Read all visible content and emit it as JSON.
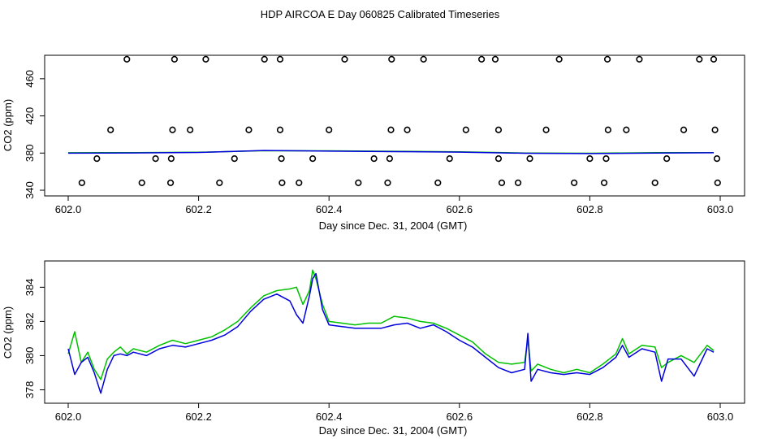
{
  "title": "HDP AIRCOA E  Day 060825  Calibrated Timeseries",
  "colors": {
    "series_green": "#00c000",
    "series_blue": "#0000dd",
    "frame": "#000000",
    "points": "#000000"
  },
  "chart_data": [
    {
      "type": "scatter",
      "xlabel": "Day since Dec. 31, 2004 (GMT)",
      "ylabel": "CO2 (ppm)",
      "xlim": [
        602.0,
        603.0
      ],
      "ylim": [
        340,
        480
      ],
      "x_ticks": [
        "602.0",
        "602.2",
        "602.4",
        "602.6",
        "602.8",
        "603.0"
      ],
      "y_ticks": [
        "340",
        "380",
        "420",
        "460"
      ],
      "grid": false,
      "series": [
        {
          "marker": "open-circle",
          "points": [
            [
              602.09,
              481
            ],
            [
              602.163,
              481
            ],
            [
              602.211,
              481
            ],
            [
              602.301,
              481
            ],
            [
              602.325,
              481
            ],
            [
              602.424,
              481
            ],
            [
              602.496,
              481
            ],
            [
              602.545,
              481
            ],
            [
              602.634,
              481
            ],
            [
              602.655,
              481
            ],
            [
              602.753,
              481
            ],
            [
              602.827,
              481
            ],
            [
              602.876,
              481
            ],
            [
              602.968,
              481
            ],
            [
              602.99,
              481
            ],
            [
              602.065,
              405
            ],
            [
              602.16,
              405
            ],
            [
              602.187,
              405
            ],
            [
              602.277,
              405
            ],
            [
              602.325,
              405
            ],
            [
              602.4,
              405
            ],
            [
              602.495,
              405
            ],
            [
              602.52,
              405
            ],
            [
              602.61,
              405
            ],
            [
              602.66,
              405
            ],
            [
              602.733,
              405
            ],
            [
              602.828,
              405
            ],
            [
              602.856,
              405
            ],
            [
              602.944,
              405
            ],
            [
              602.992,
              405
            ],
            [
              602.044,
              374
            ],
            [
              602.134,
              374
            ],
            [
              602.158,
              374
            ],
            [
              602.255,
              374
            ],
            [
              602.327,
              374
            ],
            [
              602.375,
              374
            ],
            [
              602.469,
              374
            ],
            [
              602.493,
              374
            ],
            [
              602.585,
              374
            ],
            [
              602.66,
              374
            ],
            [
              602.708,
              374
            ],
            [
              602.8,
              374
            ],
            [
              602.825,
              374
            ],
            [
              602.918,
              374
            ],
            [
              602.995,
              374
            ],
            [
              602.021,
              348
            ],
            [
              602.113,
              348
            ],
            [
              602.157,
              348
            ],
            [
              602.232,
              348
            ],
            [
              602.328,
              348
            ],
            [
              602.354,
              348
            ],
            [
              602.445,
              348
            ],
            [
              602.49,
              348
            ],
            [
              602.567,
              348
            ],
            [
              602.665,
              348
            ],
            [
              602.69,
              348
            ],
            [
              602.776,
              348
            ],
            [
              602.822,
              348
            ],
            [
              602.9,
              348
            ],
            [
              602.996,
              348
            ]
          ]
        },
        {
          "line": "green",
          "points": [
            [
              602.0,
              380.3
            ],
            [
              602.1,
              380.5
            ],
            [
              602.2,
              380.9
            ],
            [
              602.3,
              382.5
            ],
            [
              602.4,
              382.4
            ],
            [
              602.5,
              381.9
            ],
            [
              602.6,
              381.3
            ],
            [
              602.7,
              380.1
            ],
            [
              602.8,
              379.8
            ],
            [
              602.9,
              380.4
            ],
            [
              602.99,
              380.4
            ]
          ]
        },
        {
          "line": "blue",
          "points": [
            [
              602.0,
              379.9
            ],
            [
              602.1,
              380.2
            ],
            [
              602.2,
              380.7
            ],
            [
              602.3,
              382.8
            ],
            [
              602.4,
              382.1
            ],
            [
              602.5,
              381.6
            ],
            [
              602.6,
              381.0
            ],
            [
              602.7,
              379.8
            ],
            [
              602.8,
              379.5
            ],
            [
              602.9,
              380.0
            ],
            [
              602.99,
              380.3
            ]
          ]
        }
      ]
    },
    {
      "type": "line",
      "xlabel": "Day since Dec. 31, 2004 (GMT)",
      "ylabel": "CO2 (ppm)",
      "xlim": [
        602.0,
        603.0
      ],
      "ylim": [
        377.5,
        385.3
      ],
      "x_ticks": [
        "602.0",
        "602.2",
        "602.4",
        "602.6",
        "602.8",
        "603.0"
      ],
      "y_ticks": [
        "378",
        "380",
        "382",
        "384"
      ],
      "grid": false,
      "series": [
        {
          "line": "green",
          "points": [
            [
              602.0,
              380.1
            ],
            [
              602.01,
              381.4
            ],
            [
              602.02,
              379.6
            ],
            [
              602.03,
              380.2
            ],
            [
              602.04,
              379.2
            ],
            [
              602.05,
              378.6
            ],
            [
              602.06,
              379.8
            ],
            [
              602.07,
              380.2
            ],
            [
              602.08,
              380.5
            ],
            [
              602.09,
              380.1
            ],
            [
              602.1,
              380.4
            ],
            [
              602.12,
              380.2
            ],
            [
              602.14,
              380.6
            ],
            [
              602.16,
              380.9
            ],
            [
              602.18,
              380.7
            ],
            [
              602.2,
              380.9
            ],
            [
              602.22,
              381.1
            ],
            [
              602.24,
              381.5
            ],
            [
              602.26,
              382.0
            ],
            [
              602.28,
              382.8
            ],
            [
              602.3,
              383.5
            ],
            [
              602.32,
              383.8
            ],
            [
              602.34,
              383.9
            ],
            [
              602.35,
              384.0
            ],
            [
              602.36,
              383.0
            ],
            [
              602.37,
              383.8
            ],
            [
              602.375,
              385.0
            ],
            [
              602.38,
              384.5
            ],
            [
              602.39,
              383.0
            ],
            [
              602.4,
              382.0
            ],
            [
              602.42,
              381.9
            ],
            [
              602.44,
              381.8
            ],
            [
              602.46,
              381.9
            ],
            [
              602.48,
              381.9
            ],
            [
              602.5,
              382.3
            ],
            [
              602.52,
              382.2
            ],
            [
              602.54,
              382.0
            ],
            [
              602.56,
              381.9
            ],
            [
              602.58,
              381.6
            ],
            [
              602.6,
              381.2
            ],
            [
              602.62,
              380.8
            ],
            [
              602.64,
              380.1
            ],
            [
              602.66,
              379.6
            ],
            [
              602.68,
              379.5
            ],
            [
              602.7,
              379.6
            ],
            [
              602.705,
              381.0
            ],
            [
              602.71,
              379.1
            ],
            [
              602.72,
              379.5
            ],
            [
              602.74,
              379.2
            ],
            [
              602.76,
              379.0
            ],
            [
              602.78,
              379.2
            ],
            [
              602.8,
              379.0
            ],
            [
              602.82,
              379.5
            ],
            [
              602.84,
              380.1
            ],
            [
              602.85,
              381.0
            ],
            [
              602.86,
              380.1
            ],
            [
              602.88,
              380.6
            ],
            [
              602.9,
              380.5
            ],
            [
              602.91,
              379.3
            ],
            [
              602.92,
              379.6
            ],
            [
              602.94,
              380.0
            ],
            [
              602.96,
              379.6
            ],
            [
              602.98,
              380.6
            ],
            [
              602.99,
              380.3
            ]
          ]
        },
        {
          "line": "blue",
          "points": [
            [
              602.0,
              380.4
            ],
            [
              602.01,
              378.9
            ],
            [
              602.02,
              379.6
            ],
            [
              602.03,
              379.9
            ],
            [
              602.04,
              379.0
            ],
            [
              602.05,
              377.8
            ],
            [
              602.06,
              379.2
            ],
            [
              602.07,
              380.0
            ],
            [
              602.08,
              380.1
            ],
            [
              602.09,
              380.0
            ],
            [
              602.1,
              380.2
            ],
            [
              602.12,
              380.0
            ],
            [
              602.14,
              380.4
            ],
            [
              602.16,
              380.6
            ],
            [
              602.18,
              380.5
            ],
            [
              602.2,
              380.7
            ],
            [
              602.22,
              380.9
            ],
            [
              602.24,
              381.2
            ],
            [
              602.26,
              381.7
            ],
            [
              602.28,
              382.6
            ],
            [
              602.3,
              383.3
            ],
            [
              602.32,
              383.6
            ],
            [
              602.34,
              383.2
            ],
            [
              602.35,
              382.4
            ],
            [
              602.36,
              381.9
            ],
            [
              602.37,
              383.5
            ],
            [
              602.375,
              384.5
            ],
            [
              602.38,
              384.8
            ],
            [
              602.39,
              382.7
            ],
            [
              602.4,
              381.8
            ],
            [
              602.42,
              381.7
            ],
            [
              602.44,
              381.6
            ],
            [
              602.46,
              381.6
            ],
            [
              602.48,
              381.6
            ],
            [
              602.5,
              381.8
            ],
            [
              602.52,
              381.9
            ],
            [
              602.54,
              381.6
            ],
            [
              602.56,
              381.8
            ],
            [
              602.58,
              381.4
            ],
            [
              602.6,
              380.9
            ],
            [
              602.62,
              380.5
            ],
            [
              602.64,
              379.9
            ],
            [
              602.66,
              379.3
            ],
            [
              602.68,
              379.0
            ],
            [
              602.7,
              379.2
            ],
            [
              602.705,
              381.3
            ],
            [
              602.71,
              378.5
            ],
            [
              602.72,
              379.2
            ],
            [
              602.74,
              379.0
            ],
            [
              602.76,
              378.9
            ],
            [
              602.78,
              379.0
            ],
            [
              602.8,
              378.9
            ],
            [
              602.82,
              379.3
            ],
            [
              602.84,
              379.9
            ],
            [
              602.85,
              380.6
            ],
            [
              602.86,
              379.9
            ],
            [
              602.88,
              380.4
            ],
            [
              602.9,
              380.2
            ],
            [
              602.91,
              378.5
            ],
            [
              602.92,
              379.8
            ],
            [
              602.94,
              379.8
            ],
            [
              602.96,
              378.8
            ],
            [
              602.98,
              380.4
            ],
            [
              602.99,
              380.2
            ]
          ]
        }
      ]
    }
  ]
}
